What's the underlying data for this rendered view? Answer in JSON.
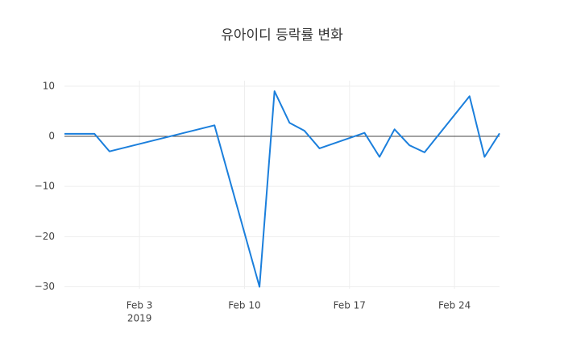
{
  "chart_data": {
    "type": "line",
    "title": "유아이디 등락률 변화",
    "x": [
      "2019-01-29",
      "2019-01-31",
      "2019-02-01",
      "2019-02-08",
      "2019-02-11",
      "2019-02-12",
      "2019-02-13",
      "2019-02-14",
      "2019-02-15",
      "2019-02-18",
      "2019-02-19",
      "2019-02-20",
      "2019-02-21",
      "2019-02-22",
      "2019-02-25",
      "2019-02-26",
      "2019-02-27"
    ],
    "series": [
      {
        "color": "#1b7fdc",
        "values": [
          0.5,
          0.5,
          -3,
          2.2,
          -30,
          9,
          2.7,
          1.1,
          -2.4,
          0.7,
          -4.1,
          1.4,
          -1.8,
          -3.2,
          8,
          -4.1,
          0.6
        ]
      }
    ],
    "xlim": [
      "2019-01-29",
      "2019-02-27"
    ],
    "xticks": [
      {
        "value": "2019-02-03",
        "label": [
          "Feb 3",
          "2019"
        ]
      },
      {
        "value": "2019-02-10",
        "label": [
          "Feb 10"
        ]
      },
      {
        "value": "2019-02-17",
        "label": [
          "Feb 17"
        ]
      },
      {
        "value": "2019-02-24",
        "label": [
          "Feb 24"
        ]
      }
    ],
    "ylim": [
      -30.4,
      11.1
    ],
    "yticks": [
      10,
      0,
      {
        "value": -10,
        "label": "−10"
      },
      {
        "value": -20,
        "label": "−20"
      },
      {
        "value": -30,
        "label": "−30"
      }
    ],
    "grid": true,
    "zeroline": true
  }
}
